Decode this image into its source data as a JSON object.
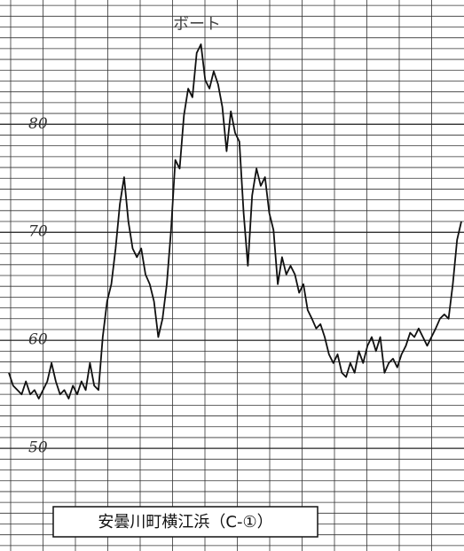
{
  "chart_data": {
    "type": "line",
    "title": "ボート",
    "caption": "安曇川町横江浜（C-①）",
    "color": "#111",
    "grid": true,
    "ylim": [
      40.5,
      91.5
    ],
    "yticks": [
      50,
      60,
      70,
      80
    ],
    "values": [
      57.0,
      55.8,
      55.4,
      55.0,
      56.2,
      55.0,
      55.4,
      54.6,
      55.4,
      56.2,
      57.9,
      56.2,
      55.0,
      55.4,
      54.6,
      55.8,
      55.0,
      56.2,
      55.4,
      57.9,
      55.8,
      55.4,
      60.3,
      63.6,
      65.2,
      68.5,
      72.6,
      75.1,
      71.0,
      68.5,
      67.7,
      68.5,
      66.1,
      65.2,
      63.6,
      60.3,
      62.0,
      65.2,
      70.2,
      76.7,
      75.9,
      80.8,
      83.3,
      82.5,
      86.6,
      87.4,
      84.1,
      83.3,
      84.9,
      83.7,
      81.6,
      77.5,
      81.2,
      79.2,
      78.4,
      71.8,
      66.9,
      73.4,
      75.9,
      74.3,
      75.1,
      71.8,
      70.2,
      65.2,
      67.7,
      66.1,
      66.9,
      66.1,
      64.4,
      65.2,
      62.8,
      62.0,
      61.1,
      61.5,
      60.3,
      58.7,
      57.9,
      58.7,
      57.0,
      56.6,
      57.9,
      57.0,
      59.0,
      57.9,
      59.5,
      60.3,
      59.0,
      60.3,
      57.0,
      57.9,
      58.3,
      57.5,
      58.7,
      59.5,
      60.7,
      60.3,
      61.1,
      60.3,
      59.5,
      60.3,
      61.1,
      62.0,
      62.4,
      62.0,
      65.2,
      69.3,
      71.0
    ]
  }
}
